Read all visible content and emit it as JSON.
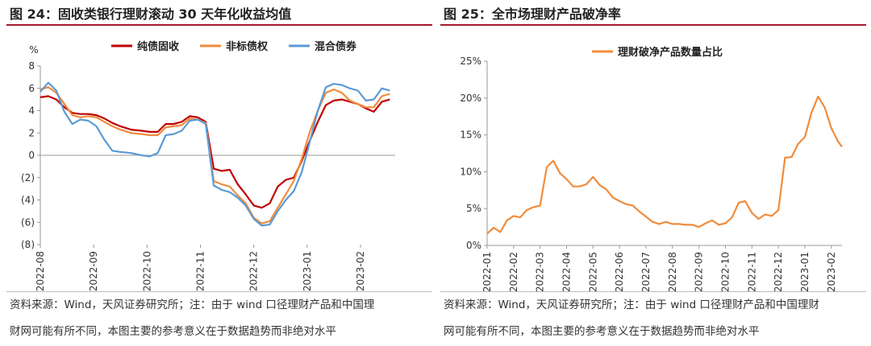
{
  "left": {
    "title": "图 24：固收类银行理财滚动 30 天年化收益均值",
    "source_line1": "资料来源：Wind，天风证券研究所；注：由于 wind 口径理财产品和中国理",
    "source_line2": "财网可能有所不同，本图主要的参考意义在于数据趋势而非绝对水平"
  },
  "right": {
    "title": "图 25：全市场理财产品破净率",
    "source_line1": "资料来源：Wind，天风证券研究所；注：由于 wind 口径理财产品和中国理财",
    "source_line2": "网可能有所不同，本图主要的参考意义在于数据趋势而非绝对水平"
  },
  "chart_data": [
    {
      "type": "line",
      "unit_label": "%",
      "ylim": [
        -8,
        8
      ],
      "y_ticks": [
        8,
        6,
        4,
        2,
        0,
        -2,
        -4,
        -6,
        -8
      ],
      "y_tick_labels": [
        "8",
        "6",
        "4",
        "2",
        "0",
        "(2)",
        "(4)",
        "(6)",
        "(8)"
      ],
      "x_ticks": [
        "2022-08",
        "2022-09",
        "2022-10",
        "2022-11",
        "2022-12",
        "2023-01",
        "2023-02"
      ],
      "x_tick_pos": [
        0,
        1,
        2,
        3,
        4,
        5,
        6
      ],
      "xlim": [
        0,
        6.65
      ],
      "legend_position": "top",
      "grid": false,
      "series": [
        {
          "name": "纯债固收",
          "color": "#c00000",
          "x": [
            0,
            0.15,
            0.3,
            0.45,
            0.6,
            0.75,
            0.9,
            1.05,
            1.2,
            1.35,
            1.5,
            1.7,
            1.9,
            2.05,
            2.2,
            2.35,
            2.5,
            2.65,
            2.8,
            2.95,
            3.1,
            3.25,
            3.4,
            3.55,
            3.7,
            3.85,
            4.0,
            4.15,
            4.3,
            4.45,
            4.6,
            4.75,
            4.9,
            5.05,
            5.2,
            5.35,
            5.5,
            5.65,
            5.8,
            5.95,
            6.1,
            6.25,
            6.4,
            6.55
          ],
          "values": [
            5.2,
            5.3,
            5.0,
            4.3,
            3.8,
            3.7,
            3.7,
            3.6,
            3.3,
            2.9,
            2.6,
            2.3,
            2.2,
            2.1,
            2.1,
            2.8,
            2.8,
            3.0,
            3.5,
            3.4,
            3.0,
            -1.2,
            -1.4,
            -1.3,
            -2.6,
            -3.5,
            -4.5,
            -4.7,
            -4.3,
            -2.8,
            -2.2,
            -2.0,
            -0.5,
            1.3,
            3.0,
            4.5,
            4.9,
            5.0,
            4.8,
            4.6,
            4.2,
            3.9,
            4.8,
            5.0
          ]
        },
        {
          "name": "非标债权",
          "color": "#f08c3c",
          "x": [
            0,
            0.15,
            0.3,
            0.45,
            0.6,
            0.75,
            0.9,
            1.05,
            1.2,
            1.35,
            1.5,
            1.7,
            1.9,
            2.05,
            2.2,
            2.35,
            2.5,
            2.65,
            2.8,
            2.95,
            3.1,
            3.25,
            3.4,
            3.55,
            3.7,
            3.85,
            4.0,
            4.15,
            4.3,
            4.45,
            4.6,
            4.75,
            4.9,
            5.05,
            5.2,
            5.35,
            5.5,
            5.65,
            5.8,
            5.95,
            6.1,
            6.25,
            6.4,
            6.55
          ],
          "values": [
            5.9,
            6.1,
            5.6,
            4.6,
            3.6,
            3.4,
            3.5,
            3.4,
            3.0,
            2.6,
            2.3,
            2.0,
            1.9,
            1.8,
            1.8,
            2.5,
            2.6,
            2.7,
            3.3,
            3.2,
            2.9,
            -2.3,
            -2.6,
            -2.8,
            -3.6,
            -4.3,
            -5.6,
            -6.1,
            -5.9,
            -4.7,
            -3.5,
            -2.3,
            -0.3,
            2.1,
            4.0,
            5.6,
            5.9,
            5.6,
            4.9,
            4.6,
            4.3,
            4.3,
            5.3,
            5.5
          ]
        },
        {
          "name": "混合债券",
          "color": "#5b9bd5",
          "x": [
            0,
            0.15,
            0.3,
            0.45,
            0.6,
            0.75,
            0.9,
            1.05,
            1.2,
            1.35,
            1.5,
            1.7,
            1.9,
            2.05,
            2.2,
            2.35,
            2.5,
            2.65,
            2.8,
            2.95,
            3.1,
            3.25,
            3.4,
            3.55,
            3.7,
            3.85,
            4.0,
            4.15,
            4.3,
            4.45,
            4.6,
            4.75,
            4.9,
            5.05,
            5.2,
            5.35,
            5.5,
            5.65,
            5.8,
            5.95,
            6.1,
            6.25,
            6.4,
            6.55
          ],
          "values": [
            5.7,
            6.5,
            5.8,
            3.9,
            2.8,
            3.2,
            3.1,
            2.6,
            1.4,
            0.4,
            0.3,
            0.2,
            0.0,
            -0.1,
            0.2,
            1.8,
            1.9,
            2.2,
            3.1,
            3.2,
            2.8,
            -2.7,
            -3.1,
            -3.3,
            -3.8,
            -4.5,
            -5.7,
            -6.3,
            -6.2,
            -5.0,
            -4.0,
            -3.2,
            -1.5,
            1.2,
            4.0,
            6.1,
            6.4,
            6.3,
            6.0,
            5.8,
            4.9,
            5.0,
            6.0,
            5.8
          ]
        }
      ]
    },
    {
      "type": "line",
      "ylim": [
        0,
        25
      ],
      "y_ticks": [
        0,
        5,
        10,
        15,
        20,
        25
      ],
      "y_tick_labels": [
        "0%",
        "5%",
        "10%",
        "15%",
        "20%",
        "25%"
      ],
      "x_ticks": [
        "2022-01",
        "2022-02",
        "2022-03",
        "2022-04",
        "2022-05",
        "2022-06",
        "2022-07",
        "2022-08",
        "2022-09",
        "2022-10",
        "2022-11",
        "2022-12",
        "2023-01",
        "2023-02"
      ],
      "x_tick_pos": [
        0,
        1,
        2,
        3,
        4,
        5,
        6,
        7,
        8,
        9,
        10,
        11,
        12,
        13
      ],
      "xlim": [
        0,
        13.4
      ],
      "legend_position": "top",
      "grid": false,
      "series": [
        {
          "name": "理财破净产品数量占比",
          "color": "#f08c3c",
          "x": [
            0,
            0.25,
            0.5,
            0.75,
            1.0,
            1.25,
            1.5,
            1.75,
            2.0,
            2.25,
            2.5,
            2.75,
            3.0,
            3.25,
            3.5,
            3.75,
            4.0,
            4.25,
            4.5,
            4.75,
            5.0,
            5.25,
            5.5,
            5.75,
            6.0,
            6.25,
            6.5,
            6.75,
            7.0,
            7.25,
            7.5,
            7.75,
            8.0,
            8.25,
            8.5,
            8.75,
            9.0,
            9.25,
            9.5,
            9.75,
            10.0,
            10.25,
            10.5,
            10.75,
            11.0,
            11.25,
            11.5,
            11.75,
            12.0,
            12.25,
            12.5,
            12.75,
            13.0,
            13.25,
            13.4
          ],
          "values": [
            1.6,
            2.4,
            1.8,
            3.4,
            4.0,
            3.8,
            4.8,
            5.2,
            5.4,
            10.6,
            11.5,
            9.8,
            9.0,
            8.0,
            8.0,
            8.3,
            9.3,
            8.2,
            7.6,
            6.5,
            6.0,
            5.6,
            5.4,
            4.6,
            3.9,
            3.2,
            2.9,
            3.2,
            2.9,
            2.9,
            2.8,
            2.8,
            2.5,
            3.0,
            3.4,
            2.8,
            3.0,
            3.8,
            5.8,
            6.0,
            4.4,
            3.6,
            4.2,
            4.0,
            4.8,
            11.9,
            12.0,
            13.8,
            14.7,
            18.0,
            20.2,
            18.7,
            15.9,
            14.1,
            13.4
          ]
        }
      ]
    }
  ]
}
